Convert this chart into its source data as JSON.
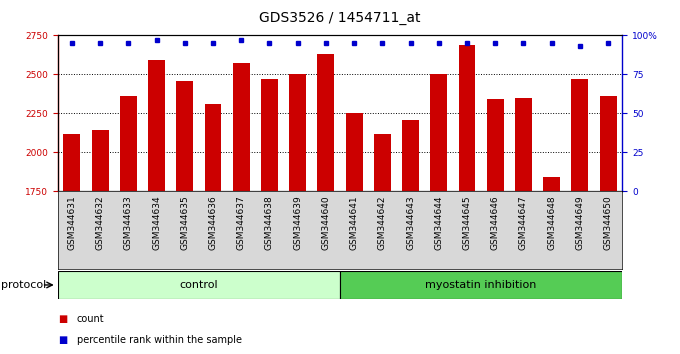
{
  "title": "GDS3526 / 1454711_at",
  "samples": [
    "GSM344631",
    "GSM344632",
    "GSM344633",
    "GSM344634",
    "GSM344635",
    "GSM344636",
    "GSM344637",
    "GSM344638",
    "GSM344639",
    "GSM344640",
    "GSM344641",
    "GSM344642",
    "GSM344643",
    "GSM344644",
    "GSM344645",
    "GSM344646",
    "GSM344647",
    "GSM344648",
    "GSM344649",
    "GSM344650"
  ],
  "counts": [
    2120,
    2140,
    2360,
    2590,
    2460,
    2310,
    2570,
    2470,
    2500,
    2630,
    2250,
    2120,
    2210,
    2505,
    2690,
    2340,
    2350,
    1840,
    2470,
    2360
  ],
  "percentile_ranks": [
    95,
    95,
    95,
    97,
    95,
    95,
    97,
    95,
    95,
    95,
    95,
    95,
    95,
    95,
    95,
    95,
    95,
    95,
    93,
    95
  ],
  "control_count": 10,
  "myostatin_count": 10,
  "ylim_left": [
    1750,
    2750
  ],
  "ylim_right": [
    0,
    100
  ],
  "yticks_left": [
    1750,
    2000,
    2250,
    2500,
    2750
  ],
  "yticks_right": [
    0,
    25,
    50,
    75,
    100
  ],
  "bar_color": "#cc0000",
  "dot_color": "#0000cc",
  "bar_width": 0.6,
  "control_bg": "#ccffcc",
  "myostatin_bg": "#55cc55",
  "protocol_label": "protocol",
  "control_label": "control",
  "myostatin_label": "myostatin inhibition",
  "legend_count_label": "count",
  "legend_pct_label": "percentile rank within the sample",
  "title_fontsize": 10,
  "tick_fontsize": 6.5,
  "label_fontsize": 8,
  "dotted_gridlines": [
    2000,
    2250,
    2500
  ]
}
